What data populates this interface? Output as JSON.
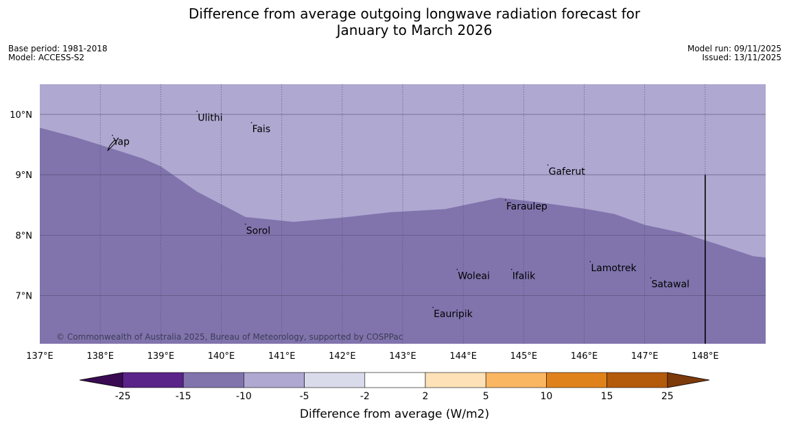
{
  "title": {
    "line1": "Difference from average outgoing longwave radiation forecast for",
    "line2": "January to March 2026"
  },
  "meta_left": {
    "base_period": "Base period: 1981-2018",
    "model": "Model: ACCESS-S2"
  },
  "meta_right": {
    "model_run": "Model run: 09/11/2025",
    "issued": "Issued: 13/11/2025"
  },
  "map": {
    "lon_range": [
      137,
      149
    ],
    "lat_range": [
      6.2,
      10.5
    ],
    "lon_ticks": [
      "137°E",
      "138°E",
      "139°E",
      "140°E",
      "141°E",
      "142°E",
      "143°E",
      "144°E",
      "145°E",
      "146°E",
      "147°E",
      "148°E"
    ],
    "lat_ticks": [
      "10°N",
      "9°N",
      "8°N",
      "7°N"
    ],
    "colors": {
      "upper_zone": "#afa8d1",
      "lower_zone": "#8174ad",
      "grid": "#444466"
    },
    "zones": [
      {
        "label": "-10 to -5",
        "color": "#afa8d1"
      },
      {
        "label": "-15 to -10",
        "color": "#8174ad"
      }
    ],
    "boundary_lonlat": [
      [
        137.0,
        9.78
      ],
      [
        137.6,
        9.62
      ],
      [
        138.2,
        9.43
      ],
      [
        138.7,
        9.27
      ],
      [
        139.0,
        9.14
      ],
      [
        139.6,
        8.72
      ],
      [
        140.4,
        8.3
      ],
      [
        141.2,
        8.22
      ],
      [
        142.0,
        8.29
      ],
      [
        142.8,
        8.38
      ],
      [
        143.7,
        8.43
      ],
      [
        144.6,
        8.62
      ],
      [
        145.2,
        8.55
      ],
      [
        146.0,
        8.44
      ],
      [
        146.5,
        8.35
      ],
      [
        147.0,
        8.17
      ],
      [
        147.6,
        8.04
      ],
      [
        148.2,
        7.85
      ],
      [
        148.8,
        7.65
      ],
      [
        149.0,
        7.63
      ]
    ],
    "islands": [
      {
        "name": "Yap",
        "lon": 138.2,
        "lat": 9.55
      },
      {
        "name": "Ulithi",
        "lon": 139.6,
        "lat": 9.95
      },
      {
        "name": "Fais",
        "lon": 140.5,
        "lat": 9.76
      },
      {
        "name": "Sorol",
        "lon": 140.4,
        "lat": 8.08
      },
      {
        "name": "Gaferut",
        "lon": 145.4,
        "lat": 9.06
      },
      {
        "name": "Faraulep",
        "lon": 144.7,
        "lat": 8.48
      },
      {
        "name": "Woleai",
        "lon": 143.9,
        "lat": 7.33
      },
      {
        "name": "Ifalik",
        "lon": 144.8,
        "lat": 7.33
      },
      {
        "name": "Lamotrek",
        "lon": 146.1,
        "lat": 7.46
      },
      {
        "name": "Satawal",
        "lon": 147.1,
        "lat": 7.19
      },
      {
        "name": "Eauripik",
        "lon": 143.5,
        "lat": 6.7
      }
    ],
    "boundary_line": {
      "lon": 148.0,
      "lat_top": 9.0
    },
    "copyright": "© Commonwealth of Australia 2025, Bureau of Meteorology, supported by COSPPac"
  },
  "legend": {
    "title": "Difference from average (W/m2)",
    "boundaries": [
      "-25",
      "-15",
      "-10",
      "-5",
      "-2",
      "2",
      "5",
      "10",
      "15",
      "25"
    ],
    "colors": [
      "#5a2389",
      "#8174ad",
      "#afa8d1",
      "#d9daea",
      "#ffffff",
      "#fee1b6",
      "#fbb662",
      "#e0821b",
      "#b35a0b"
    ],
    "under_color": "#3a0b52",
    "over_color": "#7d3a0a"
  }
}
